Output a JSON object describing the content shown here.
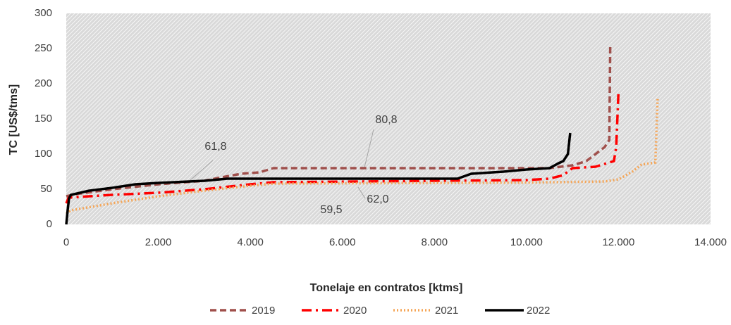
{
  "chart_data": {
    "type": "line",
    "x_label": "Tonelaje en contratos [ktms]",
    "y_label": "TC [US$/tms]",
    "xlim": [
      0,
      14000
    ],
    "ylim": [
      0,
      300
    ],
    "xticks": [
      0,
      {
        "value": 2000,
        "label": "2.000"
      },
      {
        "value": 4000,
        "label": "4.000"
      },
      {
        "value": 6000,
        "label": "6.000"
      },
      {
        "value": 8000,
        "label": "8.000"
      },
      {
        "value": 10000,
        "label": "10.000"
      },
      {
        "value": 12000,
        "label": "12.000"
      },
      {
        "value": 14000,
        "label": "14.000"
      }
    ],
    "yticks": [
      0,
      50,
      100,
      150,
      200,
      250,
      300
    ],
    "legend": "bottom",
    "series": [
      {
        "name": "2019",
        "color": "#a0504c",
        "line_style": "dashed",
        "x": [
          0,
          200,
          1000,
          2000,
          3000,
          3300,
          3800,
          4200,
          4500,
          10500,
          11000,
          11300,
          11500,
          11700,
          11800,
          11820
        ],
        "values": [
          40,
          43,
          50,
          57,
          62,
          66,
          72,
          74,
          80,
          80,
          84,
          90,
          100,
          110,
          120,
          255
        ]
      },
      {
        "name": "2020",
        "color": "#ff0000",
        "line_style": "dashdot",
        "x": [
          0,
          50,
          500,
          1000,
          2000,
          3000,
          4000,
          4500,
          10000,
          10500,
          10800,
          11000,
          11500,
          11900,
          11950,
          12000
        ],
        "values": [
          30,
          38,
          40,
          42,
          45,
          50,
          57,
          60,
          63,
          65,
          70,
          80,
          82,
          90,
          110,
          190
        ]
      },
      {
        "name": "2021",
        "color": "#f5a556",
        "line_style": "dotted",
        "x": [
          0,
          100,
          1000,
          2000,
          3000,
          4000,
          4500,
          10000,
          11700,
          12000,
          12300,
          12500,
          12800,
          12850
        ],
        "values": [
          15,
          20,
          30,
          40,
          48,
          55,
          58,
          59.5,
          61,
          64,
          75,
          85,
          88,
          180
        ]
      },
      {
        "name": "2022",
        "color": "#000000",
        "line_style": "solid",
        "x": [
          0,
          30,
          60,
          100,
          500,
          1000,
          1500,
          2000,
          3000,
          3500,
          8500,
          8800,
          9500,
          10000,
          10500,
          10700,
          10800,
          10900,
          10950
        ],
        "values": [
          0,
          20,
          37,
          42,
          48,
          52,
          57,
          59,
          62,
          65,
          65,
          72,
          75,
          78,
          80,
          87,
          90,
          100,
          130
        ]
      }
    ],
    "annotations": [
      "61,8",
      "80,8",
      "59,5",
      "62,0"
    ]
  }
}
